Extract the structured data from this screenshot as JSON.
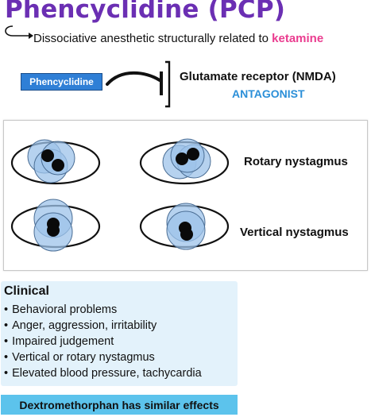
{
  "title": "Phencyclidine (PCP)",
  "subtitle": {
    "text": "Dissociative anesthetic structurally related to ",
    "keyword": "ketamine"
  },
  "mechanism": {
    "drug_label": "Phencyclidine",
    "target": "Glutamate receptor (NMDA)",
    "action": "ANTAGONIST"
  },
  "eyes": {
    "rows": [
      {
        "label": "Rotary nystagmus"
      },
      {
        "label": "Vertical nystagmus"
      }
    ]
  },
  "clinical": {
    "heading": "Clinical",
    "items": [
      "Behavioral problems",
      "Anger, aggression, irritability",
      "Impaired judgement",
      "Vertical or rotary nystagmus",
      "Elevated blood pressure, tachycardia"
    ]
  },
  "note": "Dextromethorphan has similar effects",
  "colors": {
    "title": "#6b2fb3",
    "keyword": "#ea3c8f",
    "drug_box": "#2f7fd6",
    "antagonist": "#2b8fd8",
    "clinical_bg": "#e3f2fb",
    "note_bg": "#5cc3ec",
    "iris": "#9ec3ea"
  }
}
